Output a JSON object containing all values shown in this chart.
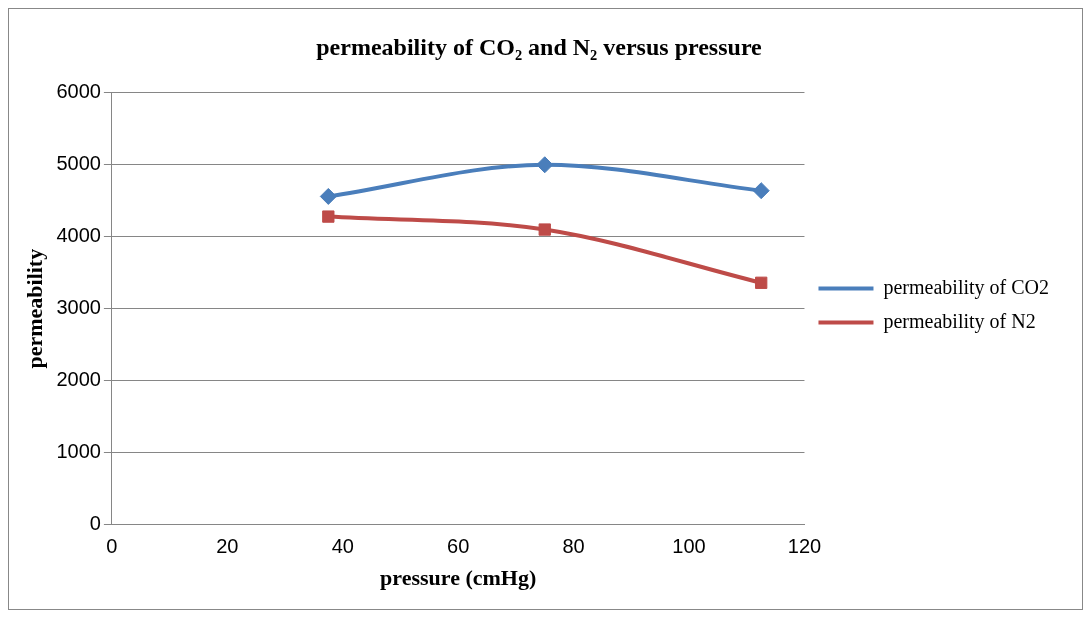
{
  "chart_data": {
    "type": "line",
    "title": "permeability of CO₂ and N₂ versus pressure",
    "xlabel": "pressure (cmHg)",
    "ylabel": "permeability",
    "x": [
      37.5,
      75,
      112.5
    ],
    "series": [
      {
        "name": "permeability of CO2",
        "color": "#4a7ebb",
        "values": [
          4560,
          5000,
          4640
        ],
        "marker": "diamond"
      },
      {
        "name": "permeability of N2",
        "color": "#be4b48",
        "values": [
          4280,
          4100,
          3360
        ],
        "marker": "square"
      }
    ],
    "xlim": [
      0,
      120
    ],
    "xticks": [
      0,
      20,
      40,
      60,
      80,
      100,
      120
    ],
    "ylim": [
      0,
      6000
    ],
    "yticks": [
      0,
      1000,
      2000,
      3000,
      4000,
      5000,
      6000
    ],
    "grid": "y",
    "legend": "right",
    "line_style": "solid"
  }
}
